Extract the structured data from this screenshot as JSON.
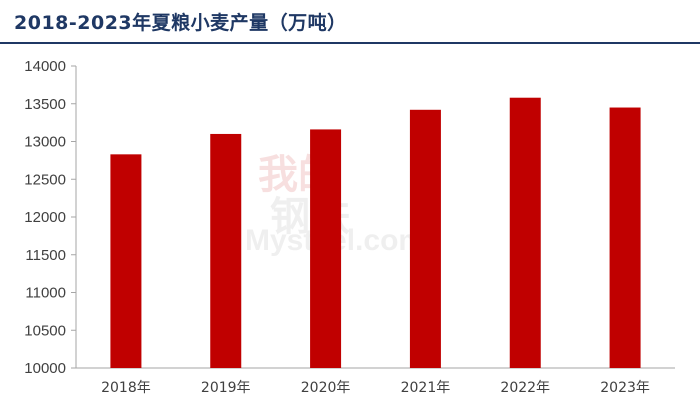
{
  "title": "2018-2023年夏粮小麦产量（万吨）",
  "colors": {
    "bar": "#c00000",
    "title": "#1f3864",
    "axis": "#a6a6a6",
    "text": "#404040"
  },
  "chart_data": {
    "type": "bar",
    "title": "2018-2023年夏粮小麦产量（万吨）",
    "xlabel": "",
    "ylabel": "",
    "categories": [
      "2018年",
      "2019年",
      "2020年",
      "2021年",
      "2022年",
      "2023年"
    ],
    "values": [
      12830,
      13100,
      13160,
      13420,
      13580,
      13450
    ],
    "ylim": [
      10000,
      14000
    ],
    "yticks": [
      "10000",
      "10500",
      "11000",
      "11500",
      "12000",
      "12500",
      "13000",
      "13500",
      "14000"
    ],
    "grid": false,
    "legend": "none"
  }
}
